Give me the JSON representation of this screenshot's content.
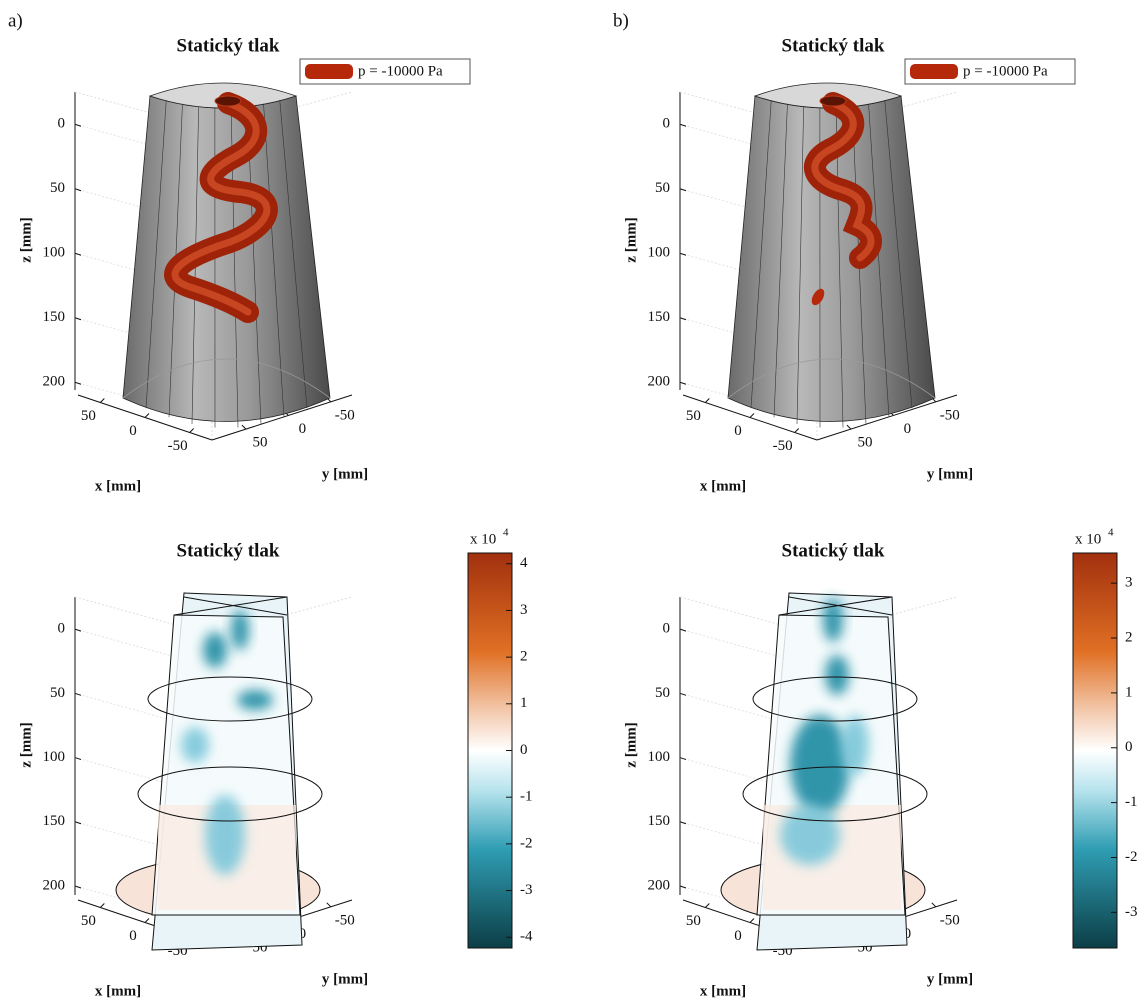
{
  "panels": [
    {
      "label": "a)",
      "title": "Statický tlak",
      "legend": "p = -10000 Pa",
      "z_label": "z [mm]",
      "x_label": "x [mm]",
      "y_label": "y [mm]",
      "zlim": [
        -25,
        206
      ],
      "zticks": [
        0,
        50,
        100,
        150,
        200
      ],
      "xlim": [
        75,
        -75
      ],
      "xticks": [
        50,
        0,
        -50
      ],
      "ylim": [
        90,
        -75
      ],
      "yticks": [
        50,
        0,
        -50
      ]
    },
    {
      "label": "b)",
      "title": "Statický tlak",
      "legend": "p = -10000 Pa",
      "z_label": "z [mm]",
      "x_label": "x [mm]",
      "y_label": "y [mm]",
      "zlim": [
        -25,
        206
      ],
      "zticks": [
        0,
        50,
        100,
        150,
        200
      ],
      "xlim": [
        75,
        -75
      ],
      "xticks": [
        50,
        0,
        -50
      ],
      "ylim": [
        90,
        -75
      ],
      "yticks": [
        50,
        0,
        -50
      ]
    },
    {
      "title": "Statický tlak",
      "z_label": "z [mm]",
      "x_label": "x [mm]",
      "y_label": "y [mm]",
      "zlim": [
        -25,
        207
      ],
      "zticks": [
        0,
        50,
        100,
        150,
        200
      ],
      "xlim": [
        75,
        -75
      ],
      "xticks": [
        50,
        0,
        -50
      ],
      "ylim": [
        90,
        -75
      ],
      "yticks": [
        50,
        0,
        -50
      ],
      "colorbar": {
        "label": "x 10",
        "exponent": "4",
        "clim": [
          -4.23,
          4.23
        ],
        "ticks": [
          -4,
          -3,
          -2,
          -1,
          0,
          1,
          2,
          3,
          4
        ]
      }
    },
    {
      "title": "Statický tlak",
      "z_label": "z [mm]",
      "x_label": "x [mm]",
      "y_label": "y [mm]",
      "zlim": [
        -25,
        207
      ],
      "zticks": [
        0,
        50,
        100,
        150,
        200
      ],
      "xlim": [
        75,
        -75
      ],
      "xticks": [
        50,
        0,
        -50
      ],
      "ylim": [
        90,
        -75
      ],
      "yticks": [
        50,
        0,
        -50
      ],
      "colorbar": {
        "label": "x 10",
        "exponent": "4",
        "clim": [
          -3.65,
          3.55
        ],
        "ticks": [
          -3,
          -2,
          -1,
          0,
          1,
          2,
          3
        ]
      }
    }
  ]
}
